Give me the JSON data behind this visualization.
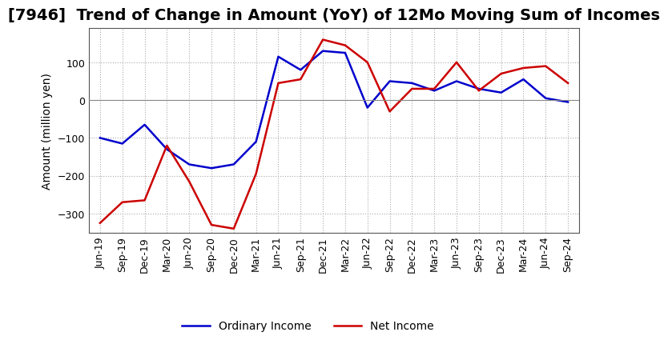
{
  "title": "[7946]  Trend of Change in Amount (YoY) of 12Mo Moving Sum of Incomes",
  "ylabel": "Amount (million yen)",
  "x_labels": [
    "Jun-19",
    "Sep-19",
    "Dec-19",
    "Mar-20",
    "Jun-20",
    "Sep-20",
    "Dec-20",
    "Mar-21",
    "Jun-21",
    "Sep-21",
    "Dec-21",
    "Mar-22",
    "Jun-22",
    "Sep-22",
    "Dec-22",
    "Mar-23",
    "Jun-23",
    "Sep-23",
    "Dec-23",
    "Mar-24",
    "Jun-24",
    "Sep-24"
  ],
  "ordinary_income": [
    -100,
    -115,
    -65,
    -130,
    -170,
    -180,
    -170,
    -110,
    115,
    80,
    130,
    125,
    -20,
    50,
    45,
    25,
    50,
    30,
    20,
    55,
    5,
    -5
  ],
  "net_income": [
    -325,
    -270,
    -265,
    -120,
    -215,
    -330,
    -340,
    -195,
    45,
    55,
    160,
    145,
    100,
    -30,
    30,
    30,
    100,
    25,
    70,
    85,
    90,
    45
  ],
  "ordinary_color": "#0000cc",
  "net_color": "#cc0000",
  "ylim_min": -350,
  "ylim_max": 190,
  "yticks": [
    -300,
    -200,
    -100,
    0,
    100
  ],
  "grid_color": "#aaaaaa",
  "grid_linestyle": "dotted",
  "bg_color": "#ffffff",
  "title_fontsize": 14,
  "label_fontsize": 10,
  "tick_fontsize": 9,
  "legend_labels": [
    "Ordinary Income",
    "Net Income"
  ]
}
